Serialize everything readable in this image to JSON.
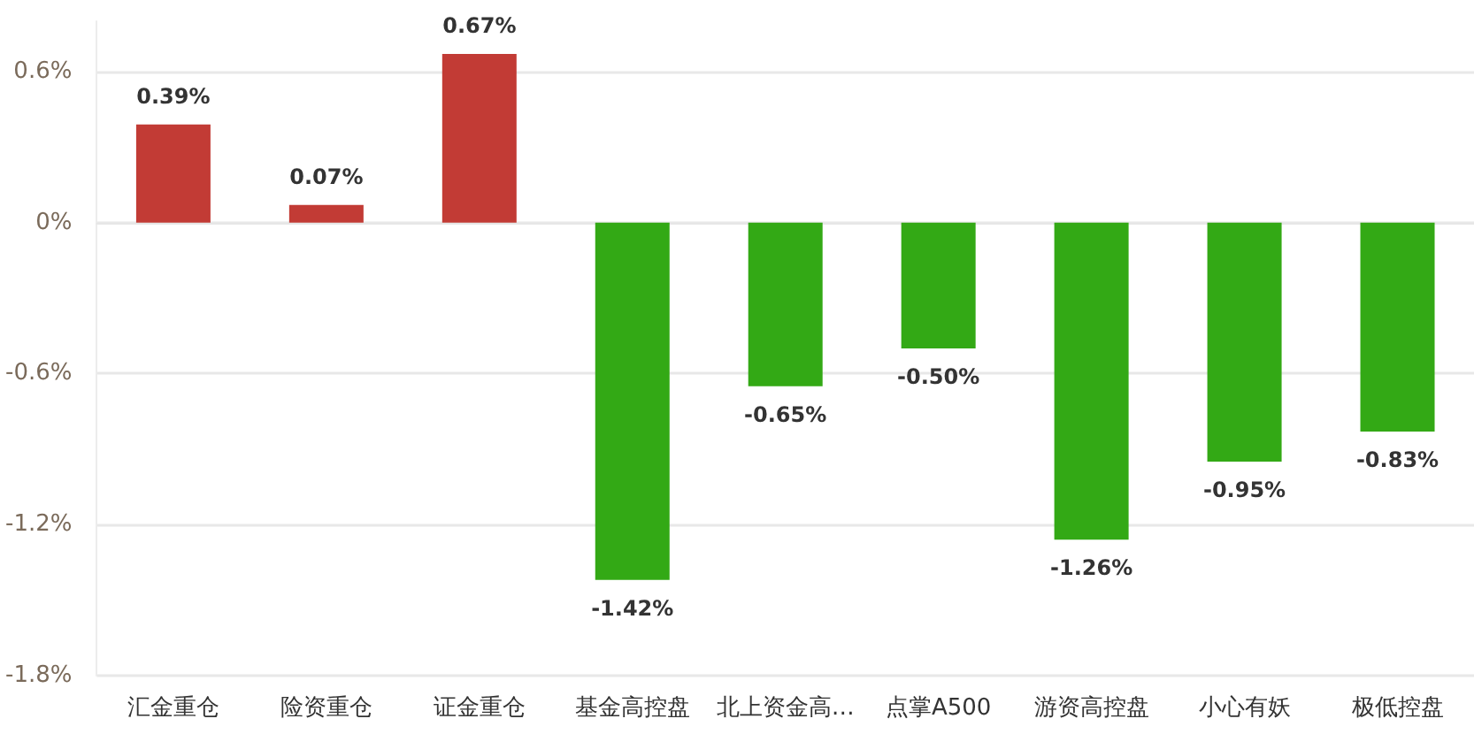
{
  "chart_data": {
    "type": "bar",
    "categories": [
      "汇金重仓",
      "险资重仓",
      "证金重仓",
      "基金高控盘",
      "北上资金高…",
      "点掌A500",
      "游资高控盘",
      "小心有妖",
      "极低控盘"
    ],
    "values": [
      0.39,
      0.07,
      0.67,
      -1.42,
      -0.65,
      -0.5,
      -1.26,
      -0.95,
      -0.83
    ],
    "colors": [
      "#c23b35",
      "#c23b35",
      "#c23b35",
      "#33a915",
      "#33a915",
      "#33a915",
      "#33a915",
      "#33a915",
      "#33a915"
    ],
    "value_labels": [
      "0.39%",
      "0.07%",
      "0.67%",
      "-1.42%",
      "-0.65%",
      "-0.50%",
      "-1.26%",
      "-0.95%",
      "-0.83%"
    ],
    "ylim": [
      -1.8,
      0.8
    ],
    "yticks": [
      {
        "value": -1.8,
        "label": "-1.8%"
      },
      {
        "value": -1.2,
        "label": "-1.2%"
      },
      {
        "value": -0.6,
        "label": "-0.6%"
      },
      {
        "value": 0,
        "label": "0%"
      },
      {
        "value": 0.6,
        "label": "0.6%"
      }
    ],
    "grid": "y"
  }
}
